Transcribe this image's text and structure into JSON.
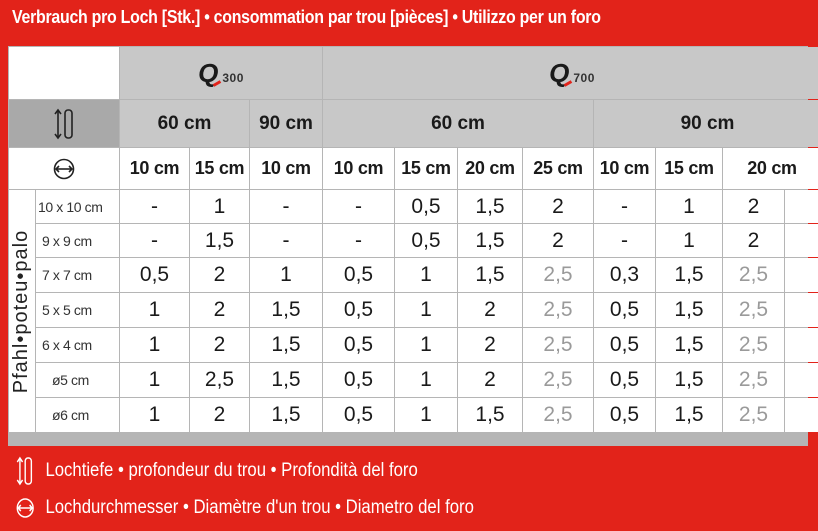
{
  "title": "Verbrauch pro Loch [Stk.] • consommation par trou [pièces] • Utilizzo per un foro",
  "products": [
    {
      "name": "300",
      "icon": "q-logo-icon"
    },
    {
      "name": "700",
      "icon": "q-logo-icon"
    }
  ],
  "depths": {
    "q300": [
      "60 cm",
      "90 cm"
    ],
    "q700": [
      "60 cm",
      "90 cm"
    ]
  },
  "diameters": [
    "10 cm",
    "15 cm",
    "10 cm",
    "10 cm",
    "15 cm",
    "20 cm",
    "25 cm",
    "10 cm",
    "15 cm",
    "20 cm"
  ],
  "vertical_label": "Pfahl•poteu•palo",
  "rows": [
    {
      "label": "10 x 10 cm",
      "values": [
        "-",
        "1",
        "-",
        "-",
        "0,5",
        "1,5",
        "2",
        "-",
        "1",
        "2"
      ]
    },
    {
      "label": "9 x 9 cm",
      "values": [
        "-",
        "1,5",
        "-",
        "-",
        "0,5",
        "1,5",
        "2",
        "-",
        "1",
        "2"
      ]
    },
    {
      "label": "7 x 7 cm",
      "values": [
        "0,5",
        "2",
        "1",
        "0,5",
        "1",
        "1,5",
        "2,5",
        "0,3",
        "1,5",
        "2,5"
      ]
    },
    {
      "label": "5 x 5 cm",
      "values": [
        "1",
        "2",
        "1,5",
        "0,5",
        "1",
        "2",
        "2,5",
        "0,5",
        "1,5",
        "2,5"
      ]
    },
    {
      "label": "6 x 4 cm",
      "values": [
        "1",
        "2",
        "1,5",
        "0,5",
        "1",
        "2",
        "2,5",
        "0,5",
        "1,5",
        "2,5"
      ]
    },
    {
      "label": "ø5 cm",
      "values": [
        "1",
        "2,5",
        "1,5",
        "0,5",
        "1",
        "2",
        "2,5",
        "0,5",
        "1,5",
        "2,5"
      ]
    },
    {
      "label": "ø6 cm",
      "values": [
        "1",
        "2",
        "1,5",
        "0,5",
        "1",
        "1,5",
        "2,5",
        "0,5",
        "1,5",
        "2,5"
      ]
    }
  ],
  "legend": {
    "depth": "Lochtiefe • profondeur du trou • Profondità del foro",
    "diameter": "Lochdurchmesser • Diamètre d'un trou • Diametro del foro"
  },
  "colors": {
    "brand_red": "#e2231a",
    "header_gray": "#c8c8c8",
    "muted_value": "#9a9a9a"
  }
}
